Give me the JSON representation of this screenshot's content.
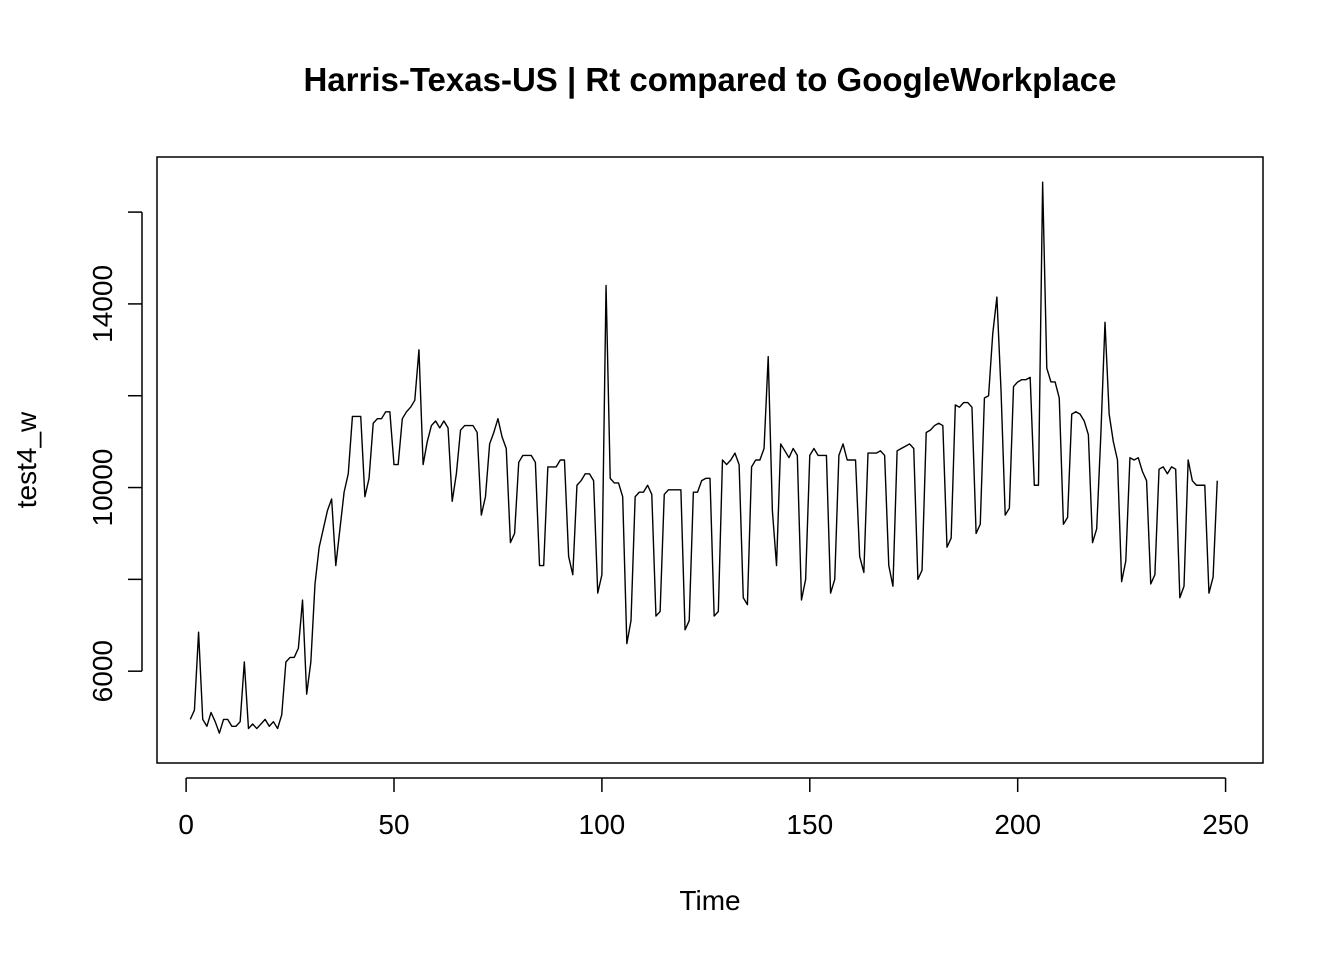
{
  "chart_data": {
    "type": "line",
    "title": "Harris-Texas-US | Rt compared to GoogleWorkplace",
    "xlabel": "Time",
    "ylabel": "test4_w",
    "xlim": [
      -7,
      259
    ],
    "ylim": [
      4000,
      17200
    ],
    "xticks": [
      0,
      50,
      100,
      150,
      200,
      250
    ],
    "xtick_labels": [
      "0",
      "50",
      "100",
      "150",
      "200",
      "250"
    ],
    "yticks": [
      6000,
      10000,
      14000
    ],
    "ytick_labels": [
      "6000",
      "10000",
      "14000"
    ],
    "y_minor_ticks": [
      8000,
      12000,
      16000
    ],
    "grid": false,
    "series": [
      {
        "color": "#000000",
        "x": [
          1,
          2,
          3,
          4,
          5,
          6,
          7,
          8,
          9,
          10,
          11,
          12,
          13,
          14,
          15,
          16,
          17,
          18,
          19,
          20,
          21,
          22,
          23,
          24,
          25,
          26,
          27,
          28,
          29,
          30,
          31,
          32,
          33,
          34,
          35,
          36,
          37,
          38,
          39,
          40,
          41,
          42,
          43,
          44,
          45,
          46,
          47,
          48,
          49,
          50,
          51,
          52,
          53,
          54,
          55,
          56,
          57,
          58,
          59,
          60,
          61,
          62,
          63,
          64,
          65,
          66,
          67,
          68,
          69,
          70,
          71,
          72,
          73,
          74,
          75,
          76,
          77,
          78,
          79,
          80,
          81,
          82,
          83,
          84,
          85,
          86,
          87,
          88,
          89,
          90,
          91,
          92,
          93,
          94,
          95,
          96,
          97,
          98,
          99,
          100,
          101,
          102,
          103,
          104,
          105,
          106,
          107,
          108,
          109,
          110,
          111,
          112,
          113,
          114,
          115,
          116,
          117,
          118,
          119,
          120,
          121,
          122,
          123,
          124,
          125,
          126,
          127,
          128,
          129,
          130,
          131,
          132,
          133,
          134,
          135,
          136,
          137,
          138,
          139,
          140,
          141,
          142,
          143,
          144,
          145,
          146,
          147,
          148,
          149,
          150,
          151,
          152,
          153,
          154,
          155,
          156,
          157,
          158,
          159,
          160,
          161,
          162,
          163,
          164,
          165,
          166,
          167,
          168,
          169,
          170,
          171,
          172,
          173,
          174,
          175,
          176,
          177,
          178,
          179,
          180,
          181,
          182,
          183,
          184,
          185,
          186,
          187,
          188,
          189,
          190,
          191,
          192,
          193,
          194,
          195,
          196,
          197,
          198,
          199,
          200,
          201,
          202,
          203,
          204,
          205,
          206,
          207,
          208,
          209,
          210,
          211,
          212,
          213,
          214,
          215,
          216,
          217,
          218,
          219,
          220,
          221,
          222,
          223,
          224,
          225,
          226,
          227,
          228,
          229,
          230,
          231,
          232,
          233,
          234,
          235,
          236,
          237,
          238,
          239,
          240,
          241,
          242,
          243,
          244,
          245,
          246,
          247,
          248
        ],
        "y": [
          4950,
          5150,
          6850,
          4950,
          4800,
          5100,
          4900,
          4650,
          4950,
          4950,
          4800,
          4800,
          4900,
          6200,
          4750,
          4850,
          4750,
          4850,
          4950,
          4800,
          4900,
          4750,
          5050,
          6200,
          6300,
          6300,
          6500,
          7550,
          5500,
          6200,
          7900,
          8700,
          9100,
          9500,
          9750,
          8300,
          9100,
          9900,
          10300,
          11550,
          11550,
          11550,
          9800,
          10200,
          11400,
          11500,
          11500,
          11650,
          11650,
          10500,
          10500,
          11500,
          11650,
          11750,
          11900,
          13000,
          10500,
          11000,
          11350,
          11450,
          11300,
          11450,
          11300,
          9700,
          10300,
          11250,
          11350,
          11350,
          11350,
          11200,
          9400,
          9800,
          10950,
          11200,
          11500,
          11100,
          10850,
          8800,
          9000,
          10550,
          10700,
          10700,
          10700,
          10550,
          8300,
          8300,
          10450,
          10450,
          10450,
          10600,
          10600,
          8500,
          8100,
          10050,
          10150,
          10300,
          10300,
          10150,
          7700,
          8100,
          14400,
          10200,
          10100,
          10100,
          9800,
          6600,
          7100,
          9800,
          9900,
          9900,
          10050,
          9850,
          7200,
          7300,
          9850,
          9950,
          9950,
          9950,
          9950,
          6900,
          7100,
          9900,
          9900,
          10150,
          10200,
          10200,
          7200,
          7300,
          10600,
          10500,
          10600,
          10750,
          10500,
          7600,
          7450,
          10450,
          10600,
          10600,
          10850,
          12850,
          9500,
          8300,
          10950,
          10800,
          10650,
          10850,
          10700,
          7550,
          8000,
          10700,
          10850,
          10700,
          10700,
          10700,
          7700,
          8000,
          10700,
          10950,
          10600,
          10600,
          10600,
          8500,
          8150,
          10750,
          10750,
          10750,
          10800,
          10700,
          8300,
          7850,
          10800,
          10850,
          10900,
          10950,
          10850,
          8000,
          8200,
          11200,
          11250,
          11350,
          11400,
          11350,
          8700,
          8900,
          11800,
          11750,
          11850,
          11850,
          11750,
          9000,
          9200,
          11950,
          12000,
          13350,
          14150,
          12100,
          9400,
          9550,
          12200,
          12300,
          12350,
          12350,
          12400,
          10050,
          10050,
          16650,
          12600,
          12300,
          12300,
          11950,
          9200,
          9350,
          11600,
          11650,
          11600,
          11450,
          11150,
          8800,
          9100,
          11150,
          13600,
          11600,
          11000,
          10600,
          7950,
          8400,
          10650,
          10600,
          10650,
          10350,
          10150,
          7900,
          8100,
          10400,
          10450,
          10300,
          10450,
          10400,
          7600,
          7850,
          10600,
          10150,
          10050,
          10050,
          10050,
          7700,
          8050,
          10150
        ]
      }
    ]
  }
}
